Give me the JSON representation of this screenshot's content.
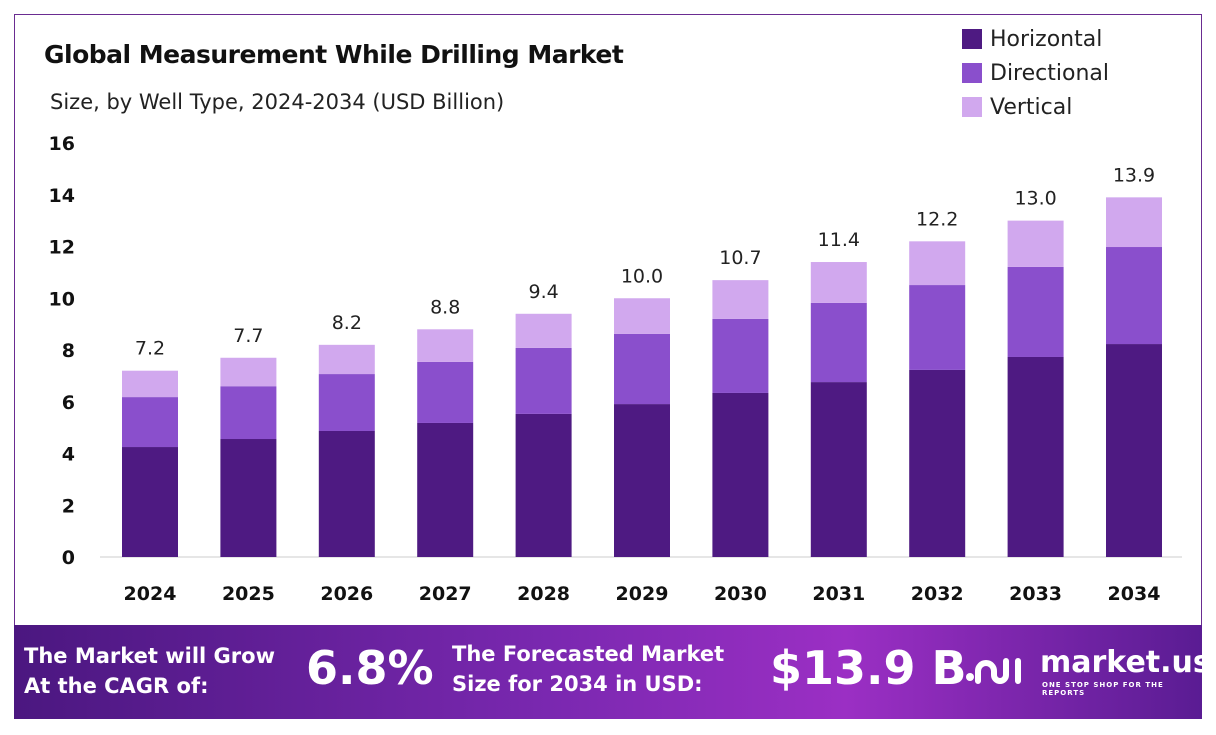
{
  "chart_data": {
    "type": "bar",
    "stacked": true,
    "title": "Global Measurement While Drilling Market",
    "subtitle": "Size, by Well Type, 2024-2034 (USD Billion)",
    "categories": [
      "2024",
      "2025",
      "2026",
      "2027",
      "2028",
      "2029",
      "2030",
      "2031",
      "2032",
      "2033",
      "2034"
    ],
    "series": [
      {
        "name": "Horizontal",
        "color": "#4e1a82",
        "values": [
          4.25,
          4.56,
          4.87,
          5.18,
          5.53,
          5.91,
          6.34,
          6.76,
          7.23,
          7.73,
          8.23
        ]
      },
      {
        "name": "Directional",
        "color": "#8a4fcc",
        "values": [
          1.93,
          2.04,
          2.2,
          2.36,
          2.55,
          2.71,
          2.86,
          3.06,
          3.28,
          3.48,
          3.75
        ]
      },
      {
        "name": "Vertical",
        "color": "#d1a8ee",
        "values": [
          1.02,
          1.1,
          1.13,
          1.26,
          1.32,
          1.38,
          1.5,
          1.58,
          1.69,
          1.79,
          1.92
        ]
      }
    ],
    "totals": [
      "7.2",
      "7.7",
      "8.2",
      "8.8",
      "9.4",
      "10.0",
      "10.7",
      "11.4",
      "12.2",
      "13.0",
      "13.9"
    ],
    "ylim": [
      0,
      16
    ],
    "yticks": [
      "0",
      "2",
      "4",
      "6",
      "8",
      "10",
      "12",
      "14",
      "16"
    ],
    "grid": false,
    "legend": "top-right"
  },
  "footer": {
    "cagr_label_1": "The Market will Grow",
    "cagr_label_2": "At the CAGR of:",
    "cagr_value": "6.8%",
    "forecast_label_1": "The Forecasted Market",
    "forecast_label_2": "Size for 2034 in USD:",
    "forecast_value": "$13.9 B",
    "logo_name": "market.us",
    "logo_tagline": "ONE STOP SHOP FOR THE REPORTS"
  }
}
